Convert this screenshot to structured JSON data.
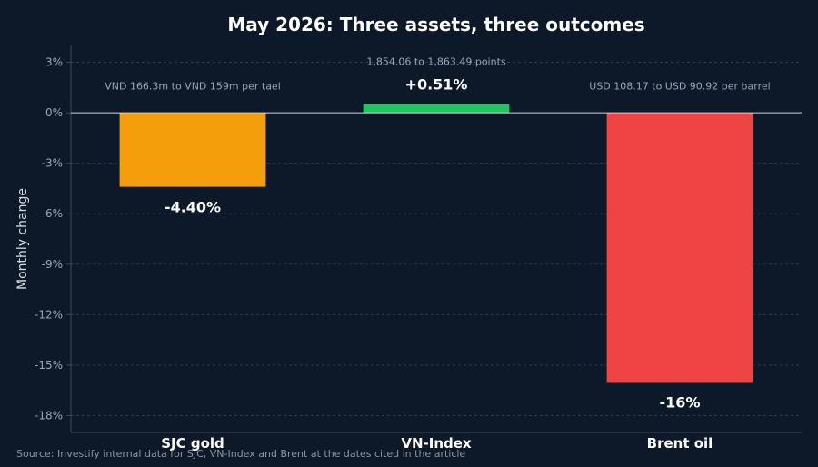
{
  "chart_data": {
    "type": "bar",
    "title": "May 2026: Three assets, three outcomes",
    "ylabel": "Monthly change",
    "xlabel": "",
    "ylim": [
      -19,
      4
    ],
    "yticks": [
      3,
      0,
      -3,
      -6,
      -9,
      -12,
      -15,
      -18
    ],
    "ytick_labels": [
      "3%",
      "0%",
      "-3%",
      "-6%",
      "-9%",
      "-12%",
      "-15%",
      "-18%"
    ],
    "grid": true,
    "categories": [
      "SJC gold",
      "VN-Index",
      "Brent oil"
    ],
    "values": [
      -4.4,
      0.51,
      -16
    ],
    "value_labels": [
      "-4.40%",
      "+0.51%",
      "-16%"
    ],
    "notes": [
      "VND 166.3m to VND 159m per tael",
      "1,854.06 to 1,863.49 points",
      "USD 108.17 to USD 90.92 per barrel"
    ],
    "colors": [
      "#f59e0b",
      "#22c55e",
      "#ef4444"
    ],
    "source": "Source: Investify internal data for SJC, VN-Index and Brent at the dates cited in the article"
  }
}
